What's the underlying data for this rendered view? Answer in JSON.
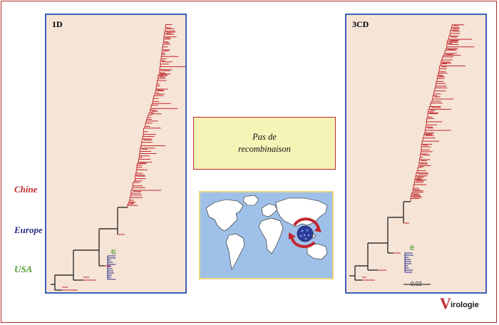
{
  "panels": {
    "left_title": "1D",
    "right_title": "3CD"
  },
  "legend": {
    "chine": "Chine",
    "europe": "Europe",
    "usa": "USA"
  },
  "note": {
    "line1": "Pas de",
    "line2": "recombinaison"
  },
  "scale": {
    "label": "0,02"
  },
  "logo": {
    "initial": "V",
    "text": "irologie"
  },
  "colors": {
    "chine": "#c0272d",
    "europe": "#2b2d88",
    "usa": "#4e9a2a",
    "frame": "#3a63b8"
  }
}
